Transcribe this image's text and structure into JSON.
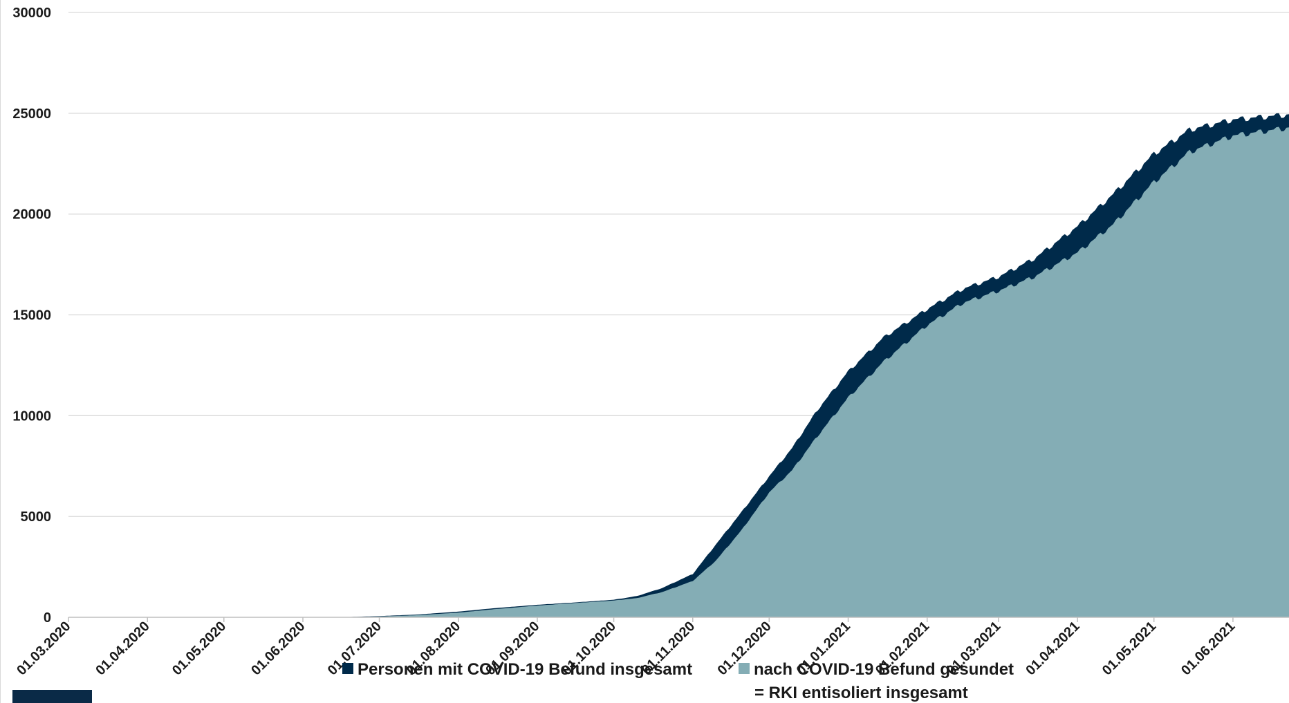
{
  "chart_data": {
    "type": "area",
    "title": "",
    "xlabel": "",
    "ylabel": "",
    "ylim": [
      0,
      30000
    ],
    "yticks": [
      "0",
      "5000",
      "10000",
      "15000",
      "20000",
      "25000",
      "30000"
    ],
    "xlim": [
      "2020-03-01",
      "2021-06-23"
    ],
    "xticks": [
      "01.03.2020",
      "01.04.2020",
      "01.05.2020",
      "01.06.2020",
      "01.07.2020",
      "01.08.2020",
      "01.09.2020",
      "01.10.2020",
      "01.11.2020",
      "01.12.2020",
      "01.01.2021",
      "01.02.2021",
      "01.03.2021",
      "01.04.2021",
      "01.05.2021",
      "01.06.2021"
    ],
    "grid": true,
    "legend_position": "bottom",
    "colors": {
      "total": "#002a4a",
      "recovered": "#84adb5"
    },
    "series": [
      {
        "name": "Personen mit COVID-19 Befund insgesamt",
        "color": "#002a4a",
        "points": [
          [
            "2020-03-01",
            0
          ],
          [
            "2020-06-15",
            0
          ],
          [
            "2020-07-01",
            60
          ],
          [
            "2020-07-15",
            130
          ],
          [
            "2020-08-01",
            280
          ],
          [
            "2020-08-15",
            450
          ],
          [
            "2020-09-01",
            620
          ],
          [
            "2020-09-15",
            730
          ],
          [
            "2020-10-01",
            870
          ],
          [
            "2020-10-10",
            1050
          ],
          [
            "2020-10-20",
            1450
          ],
          [
            "2020-11-01",
            2150
          ],
          [
            "2020-11-10",
            3600
          ],
          [
            "2020-11-20",
            5200
          ],
          [
            "2020-12-01",
            7000
          ],
          [
            "2020-12-10",
            8400
          ],
          [
            "2020-12-20",
            10300
          ],
          [
            "2021-01-01",
            12200
          ],
          [
            "2021-01-15",
            13900
          ],
          [
            "2021-02-01",
            15300
          ],
          [
            "2021-02-15",
            16300
          ],
          [
            "2021-03-01",
            16900
          ],
          [
            "2021-03-15",
            17800
          ],
          [
            "2021-04-01",
            19400
          ],
          [
            "2021-04-15",
            21000
          ],
          [
            "2021-05-01",
            23000
          ],
          [
            "2021-05-15",
            24200
          ],
          [
            "2021-06-01",
            24700
          ],
          [
            "2021-06-23",
            24950
          ]
        ]
      },
      {
        "name": "nach COVID-19 Befund gesundet\n= RKI entisoliert insgesamt",
        "color": "#84adb5",
        "points": [
          [
            "2020-03-01",
            0
          ],
          [
            "2020-06-20",
            0
          ],
          [
            "2020-07-01",
            40
          ],
          [
            "2020-07-15",
            100
          ],
          [
            "2020-08-01",
            230
          ],
          [
            "2020-08-15",
            400
          ],
          [
            "2020-09-01",
            580
          ],
          [
            "2020-09-15",
            700
          ],
          [
            "2020-10-01",
            830
          ],
          [
            "2020-10-10",
            950
          ],
          [
            "2020-10-20",
            1250
          ],
          [
            "2020-11-01",
            1800
          ],
          [
            "2020-11-10",
            2800
          ],
          [
            "2020-11-20",
            4300
          ],
          [
            "2020-12-01",
            6200
          ],
          [
            "2020-12-10",
            7300
          ],
          [
            "2020-12-20",
            9000
          ],
          [
            "2021-01-01",
            10900
          ],
          [
            "2021-01-15",
            12700
          ],
          [
            "2021-02-01",
            14500
          ],
          [
            "2021-02-15",
            15600
          ],
          [
            "2021-03-01",
            16200
          ],
          [
            "2021-03-15",
            16900
          ],
          [
            "2021-04-01",
            18100
          ],
          [
            "2021-04-15",
            19500
          ],
          [
            "2021-05-01",
            21600
          ],
          [
            "2021-05-15",
            23100
          ],
          [
            "2021-06-01",
            23900
          ],
          [
            "2021-06-23",
            24300
          ]
        ]
      }
    ]
  }
}
